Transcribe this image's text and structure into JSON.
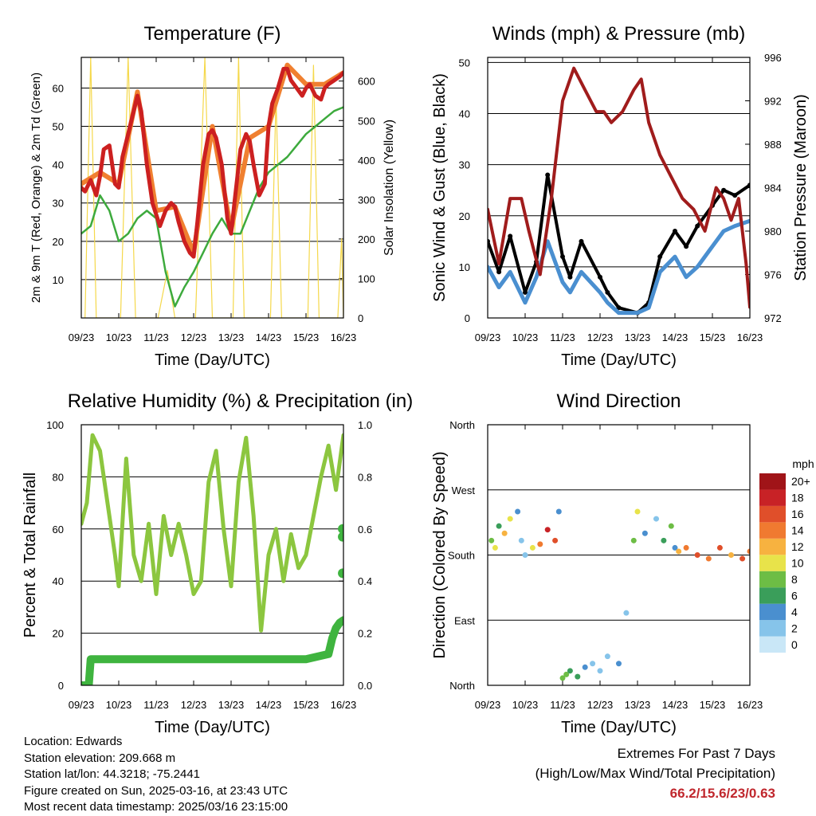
{
  "x_ticks": [
    "09/23",
    "10/23",
    "11/23",
    "12/23",
    "13/23",
    "14/23",
    "15/23",
    "16/23"
  ],
  "info": {
    "location": "Location: Edwards",
    "elevation": "Station elevation: 209.668 m",
    "latlon": "Station lat/lon: 44.3218; -75.2441",
    "created": "Figure created on Sun, 2025-03-16, at 23:43 UTC",
    "recent": "Most recent data timestamp: 2025/03/16 23:15:00"
  },
  "extremes": {
    "title": "Extremes For Past 7 Days",
    "subtitle": "(High/Low/Max Wind/Total Precipitation)",
    "values": "66.2/15.6/23/0.63"
  },
  "colors": {
    "temp2m": "#cc2020",
    "temp9m": "#f08030",
    "dewpoint": "#3daa3d",
    "solar": "#f5d84a",
    "wind": "#4a8fd0",
    "gust": "#000000",
    "pressure": "#a01c1c",
    "rh": "#8cc63f",
    "precip": "#3fb43f"
  },
  "chart_data": [
    {
      "type": "line",
      "title": "Temperature (F)",
      "xlabel": "Time (Day/UTC)",
      "ylabel": "2m & 9m T (Red, Orange) & 2m Td (Green)",
      "ylabel_right": "Solar Insolation (Yellow)",
      "x_ticks": [
        "09/23",
        "10/23",
        "11/23",
        "12/23",
        "13/23",
        "14/23",
        "15/23",
        "16/23"
      ],
      "ylim": [
        0,
        68
      ],
      "y_ticks": [
        10,
        20,
        30,
        40,
        50,
        60
      ],
      "ylim_right": [
        0,
        660
      ],
      "y_ticks_right": [
        0,
        100,
        200,
        300,
        400,
        500,
        600
      ],
      "grid": true,
      "series": [
        {
          "name": "2m T",
          "axis": "left",
          "x": [
            0,
            0.1,
            0.25,
            0.4,
            0.5,
            0.6,
            0.75,
            0.9,
            1.0,
            1.1,
            1.25,
            1.4,
            1.5,
            1.6,
            1.75,
            1.9,
            2.0,
            2.1,
            2.25,
            2.4,
            2.5,
            2.6,
            2.75,
            2.9,
            3.0,
            3.1,
            3.25,
            3.4,
            3.5,
            3.6,
            3.75,
            3.9,
            4.0,
            4.1,
            4.25,
            4.4,
            4.5,
            4.6,
            4.75,
            4.9,
            5.0,
            5.1,
            5.25,
            5.4,
            5.5,
            5.6,
            5.75,
            5.9,
            6.0,
            6.1,
            6.25,
            6.4,
            6.5,
            6.6,
            6.75,
            6.9,
            7.0
          ],
          "y": [
            34,
            33,
            36,
            32,
            37,
            44,
            45,
            35,
            34,
            42,
            48,
            54,
            58,
            54,
            40,
            30,
            27,
            24,
            28,
            30,
            29,
            25,
            20,
            17,
            16,
            25,
            40,
            48,
            49,
            47,
            40,
            26,
            22,
            31,
            44,
            48,
            46,
            40,
            32,
            35,
            50,
            56,
            60,
            65,
            65,
            62,
            60,
            58,
            60,
            61,
            58,
            57,
            60,
            61,
            62,
            63,
            64
          ]
        },
        {
          "name": "9m T",
          "axis": "left",
          "x": [
            0,
            0.5,
            1.0,
            1.5,
            2.0,
            2.5,
            3.0,
            3.5,
            4.0,
            4.5,
            5.0,
            5.5,
            6.0,
            6.5,
            7.0
          ],
          "y": [
            35,
            38,
            35,
            59,
            28,
            29,
            17,
            50,
            23,
            47,
            50,
            66,
            61,
            61,
            64
          ]
        },
        {
          "name": "2m Td",
          "axis": "left",
          "x": [
            0,
            0.25,
            0.5,
            0.75,
            1.0,
            1.25,
            1.5,
            1.75,
            2.0,
            2.25,
            2.5,
            2.75,
            3.0,
            3.25,
            3.5,
            3.75,
            4.0,
            4.25,
            4.5,
            4.75,
            5.0,
            5.25,
            5.5,
            5.75,
            6.0,
            6.25,
            6.5,
            6.75,
            7.0
          ],
          "y": [
            22,
            24,
            32,
            28,
            20,
            22,
            26,
            28,
            26,
            12,
            3,
            8,
            12,
            17,
            22,
            26,
            22,
            22,
            28,
            34,
            38,
            40,
            42,
            45,
            48,
            50,
            52,
            54,
            55
          ]
        },
        {
          "name": "Solar Insolation",
          "axis": "right",
          "x": [
            0.1,
            0.25,
            0.4,
            0.55,
            1.05,
            1.25,
            1.45,
            1.55,
            2.05,
            2.3,
            2.5,
            2.7,
            3.05,
            3.3,
            3.5,
            3.7,
            4.05,
            4.2,
            4.35,
            4.5,
            5.05,
            5.2,
            5.35,
            5.5,
            6.05,
            6.2,
            6.35,
            6.5,
            6.85,
            6.95,
            7.0
          ],
          "y": [
            0,
            660,
            0,
            0,
            0,
            660,
            0,
            0,
            0,
            120,
            0,
            0,
            0,
            660,
            0,
            0,
            0,
            660,
            0,
            0,
            0,
            560,
            0,
            0,
            0,
            640,
            0,
            0,
            0,
            200,
            0
          ]
        }
      ]
    },
    {
      "type": "line",
      "title": "Winds (mph) & Pressure (mb)",
      "xlabel": "Time (Day/UTC)",
      "ylabel": "Sonic Wind & Gust (Blue, Black)",
      "ylabel_right": "Station Pressure (Maroon)",
      "x_ticks": [
        "09/23",
        "10/23",
        "11/23",
        "12/23",
        "13/23",
        "14/23",
        "15/23",
        "16/23"
      ],
      "ylim": [
        0,
        51
      ],
      "y_ticks": [
        0,
        10,
        20,
        30,
        40,
        50
      ],
      "ylim_right": [
        972,
        996
      ],
      "y_ticks_right": [
        972,
        976,
        980,
        984,
        988,
        992,
        996
      ],
      "grid": true,
      "series": [
        {
          "name": "Wind",
          "axis": "left",
          "x": [
            0,
            0.3,
            0.6,
            1.0,
            1.3,
            1.6,
            2.0,
            2.2,
            2.5,
            3.0,
            3.2,
            3.5,
            4.0,
            4.3,
            4.6,
            5.0,
            5.3,
            5.6,
            6.0,
            6.3,
            6.6,
            7.0
          ],
          "y": [
            10,
            6,
            9,
            3,
            8,
            15,
            7,
            5,
            9,
            5,
            3,
            1,
            1,
            2,
            9,
            12,
            8,
            10,
            14,
            17,
            18,
            19
          ]
        },
        {
          "name": "Gust",
          "axis": "left",
          "x": [
            0,
            0.3,
            0.6,
            1.0,
            1.3,
            1.6,
            2.0,
            2.2,
            2.5,
            3.0,
            3.2,
            3.5,
            4.0,
            4.3,
            4.6,
            5.0,
            5.3,
            5.6,
            6.0,
            6.3,
            6.6,
            7.0
          ],
          "y": [
            15,
            9,
            16,
            5,
            11,
            28,
            12,
            8,
            15,
            8,
            5,
            2,
            1,
            3,
            12,
            17,
            14,
            18,
            22,
            25,
            24,
            26
          ]
        },
        {
          "name": "Pressure",
          "axis": "right",
          "x": [
            0,
            0.3,
            0.6,
            0.9,
            1.1,
            1.4,
            1.7,
            2.0,
            2.3,
            2.6,
            2.9,
            3.1,
            3.3,
            3.6,
            3.9,
            4.1,
            4.3,
            4.6,
            4.9,
            5.2,
            5.5,
            5.8,
            6.1,
            6.3,
            6.5,
            6.7,
            6.9,
            7.0
          ],
          "y": [
            982,
            977,
            983,
            983,
            980,
            976,
            983,
            992,
            995,
            993,
            991,
            991,
            990,
            991,
            993,
            994,
            990,
            987,
            985,
            983,
            982,
            980,
            984,
            983,
            981,
            983,
            977,
            973
          ]
        }
      ]
    },
    {
      "type": "line",
      "title": "Relative Humidity (%) & Precipitation (in)",
      "xlabel": "Time (Day/UTC)",
      "ylabel": "Percent & Total Rainfall",
      "x_ticks": [
        "09/23",
        "10/23",
        "11/23",
        "12/23",
        "13/23",
        "14/23",
        "15/23",
        "16/23"
      ],
      "ylim": [
        0,
        100
      ],
      "y_ticks": [
        0,
        20,
        40,
        60,
        80,
        100
      ],
      "ylim_right": [
        0,
        1.0
      ],
      "y_ticks_right": [
        0.0,
        0.2,
        0.4,
        0.6,
        0.8,
        1.0
      ],
      "grid": true,
      "series": [
        {
          "name": "RH",
          "axis": "left",
          "x": [
            0,
            0.15,
            0.3,
            0.5,
            0.7,
            0.9,
            1.0,
            1.2,
            1.4,
            1.6,
            1.8,
            2.0,
            2.2,
            2.4,
            2.6,
            2.8,
            3.0,
            3.2,
            3.4,
            3.6,
            3.8,
            4.0,
            4.2,
            4.4,
            4.6,
            4.8,
            5.0,
            5.2,
            5.4,
            5.6,
            5.8,
            6.0,
            6.2,
            6.4,
            6.6,
            6.8,
            7.0
          ],
          "y": [
            62,
            70,
            96,
            90,
            70,
            50,
            38,
            87,
            50,
            40,
            62,
            35,
            65,
            50,
            62,
            50,
            35,
            40,
            78,
            90,
            60,
            38,
            78,
            95,
            65,
            21,
            50,
            60,
            40,
            58,
            45,
            50,
            65,
            80,
            92,
            75,
            96
          ]
        },
        {
          "name": "Precipitation",
          "axis": "right",
          "x": [
            0,
            0.2,
            0.25,
            1.0,
            2.0,
            3.0,
            4.0,
            5.0,
            6.0,
            6.6,
            6.7,
            6.8,
            6.9,
            7.0
          ],
          "y": [
            0,
            0,
            0.1,
            0.1,
            0.1,
            0.1,
            0.1,
            0.1,
            0.1,
            0.12,
            0.18,
            0.22,
            0.24,
            0.25
          ]
        },
        {
          "name": "Precipitation points",
          "axis": "right",
          "x": [
            6.98,
            6.98,
            6.98
          ],
          "y": [
            0.43,
            0.57,
            0.6
          ]
        }
      ]
    },
    {
      "type": "scatter",
      "title": "Wind Direction",
      "xlabel": "Time (Day/UTC)",
      "ylabel": "Direction (Colored By Speed)",
      "x_ticks": [
        "09/23",
        "10/23",
        "11/23",
        "12/23",
        "13/23",
        "14/23",
        "15/23",
        "16/23"
      ],
      "y_ticks": [
        "North",
        "East",
        "South",
        "West",
        "North"
      ],
      "ylim": [
        0,
        360
      ],
      "grid": true,
      "colorbar": {
        "title": "mph",
        "labels": [
          "0",
          "2",
          "4",
          "6",
          "8",
          "10",
          "12",
          "14",
          "16",
          "18",
          "20+"
        ],
        "colors": [
          "#c9e7f7",
          "#86c4ea",
          "#4a8fcf",
          "#3a9e5a",
          "#6dbd45",
          "#e8e34a",
          "#f7b240",
          "#f07a30",
          "#e04f2a",
          "#c82226",
          "#a01418"
        ]
      },
      "series": [
        {
          "name": "points",
          "x": [
            0.1,
            0.2,
            0.3,
            0.45,
            0.6,
            0.8,
            0.9,
            1.0,
            1.2,
            1.4,
            1.6,
            1.8,
            1.9,
            2.0,
            2.1,
            2.2,
            2.4,
            2.6,
            2.8,
            3.0,
            3.2,
            3.5,
            3.7,
            3.9,
            4.0,
            4.2,
            4.5,
            4.7,
            4.9,
            5.0,
            5.1,
            5.3,
            5.6,
            5.9,
            6.2,
            6.5,
            6.8,
            7.0
          ],
          "y": [
            200,
            190,
            220,
            210,
            230,
            240,
            200,
            180,
            190,
            195,
            215,
            200,
            240,
            10,
            15,
            20,
            12,
            25,
            30,
            20,
            40,
            30,
            100,
            200,
            240,
            210,
            230,
            200,
            220,
            190,
            185,
            190,
            180,
            175,
            190,
            180,
            175,
            185
          ],
          "speed": [
            8,
            10,
            6,
            12,
            9,
            4,
            2,
            1,
            10,
            14,
            18,
            16,
            4,
            7,
            8,
            6,
            5,
            3,
            2,
            1,
            2,
            3,
            1,
            7,
            9,
            4,
            2,
            6,
            8,
            3,
            12,
            14,
            16,
            13,
            15,
            12,
            16,
            14
          ]
        }
      ]
    }
  ]
}
